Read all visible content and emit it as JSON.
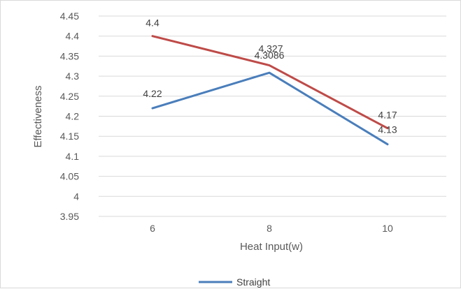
{
  "chart_data": {
    "type": "line",
    "x": [
      6,
      8,
      10
    ],
    "categories": [
      "6",
      "8",
      "10"
    ],
    "series": [
      {
        "name": "Straight",
        "color": "#4a7ebb",
        "values": [
          4.22,
          4.3086,
          4.13
        ],
        "labels": [
          "4.22",
          "4.3086",
          "4.13"
        ]
      },
      {
        "name": "",
        "color": "#be4b48",
        "values": [
          4.4,
          4.327,
          4.17
        ],
        "labels": [
          "4.4",
          "4.327",
          "4.17"
        ]
      }
    ],
    "xlabel": "Heat Input(w)",
    "ylabel": "Effectiveness",
    "ylim": [
      3.95,
      4.45
    ],
    "yticks": [
      "4.45",
      "4.4",
      "4.35",
      "4.3",
      "4.25",
      "4.2",
      "4.15",
      "4.1",
      "4.05",
      "4",
      "3.95"
    ],
    "grid": true,
    "legend_position": "bottom",
    "legend": [
      "Straight"
    ]
  }
}
